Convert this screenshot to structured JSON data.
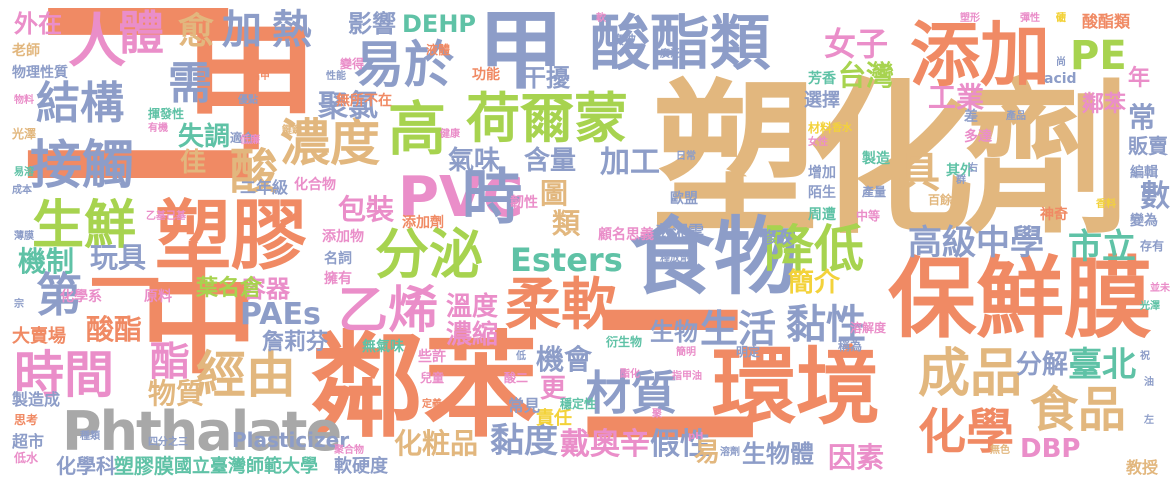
{
  "palette": {
    "tan": "#E2B77E",
    "coral": "#F08A64",
    "blue": "#8D9DC8",
    "pink": "#EA8EC9",
    "green": "#A7D34F",
    "teal": "#5FC2A6",
    "yellow": "#F3D23A",
    "gray": "#A8A8A8"
  },
  "words": [
    {
      "id": "suhuaji",
      "text": "塑化劑",
      "color": "tan"
    },
    {
      "id": "linben",
      "text": "鄰苯",
      "color": "coral"
    },
    {
      "id": "huanjing",
      "text": "環境",
      "color": "coral"
    },
    {
      "id": "baoxianmo",
      "text": "保鮮膜",
      "color": "coral"
    },
    {
      "id": "shiwu",
      "text": "食物",
      "color": "blue"
    },
    {
      "id": "sujiao",
      "text": "塑膠",
      "color": "coral"
    },
    {
      "id": "jia-big",
      "text": "甲",
      "color": "coral"
    },
    {
      "id": "zhong-big",
      "text": "中",
      "color": "coral"
    },
    {
      "id": "er-big",
      "text": "二",
      "color": "coral"
    },
    {
      "id": "er-bottom",
      "text": "二",
      "color": "coral"
    },
    {
      "id": "suanzhilei",
      "text": "酸酯類",
      "color": "blue"
    },
    {
      "id": "tianjia",
      "text": "添加",
      "color": "coral"
    },
    {
      "id": "jia-2",
      "text": "甲",
      "color": "blue"
    },
    {
      "id": "pvc",
      "text": "PVC",
      "color": "pink"
    },
    {
      "id": "phthalate",
      "text": "Phthalate",
      "color": "gray"
    },
    {
      "id": "hongermeng",
      "text": "荷爾蒙",
      "color": "green"
    },
    {
      "id": "fenmi",
      "text": "分泌",
      "color": "green"
    },
    {
      "id": "rouruan",
      "text": "柔軟",
      "color": "coral"
    },
    {
      "id": "caizhi",
      "text": "材質",
      "color": "blue"
    },
    {
      "id": "chengpin",
      "text": "成品",
      "color": "tan"
    },
    {
      "id": "shipin",
      "text": "食品",
      "color": "tan"
    },
    {
      "id": "huaxue",
      "text": "化學",
      "color": "coral"
    },
    {
      "id": "shengxian",
      "text": "生鮮",
      "color": "green"
    },
    {
      "id": "jiechu",
      "text": "接觸",
      "color": "blue"
    },
    {
      "id": "jiegou",
      "text": "結構",
      "color": "blue"
    },
    {
      "id": "ren",
      "text": "人",
      "color": "pink"
    },
    {
      "id": "ti",
      "text": "體",
      "color": "pink"
    },
    {
      "id": "xu",
      "text": "需",
      "color": "blue"
    },
    {
      "id": "yiyu",
      "text": "易於",
      "color": "blue"
    },
    {
      "id": "nongdu",
      "text": "濃度",
      "color": "tan"
    },
    {
      "id": "gao",
      "text": "高",
      "color": "green"
    },
    {
      "id": "shi",
      "text": "時",
      "color": "blue"
    },
    {
      "id": "yixi",
      "text": "乙烯",
      "color": "pink"
    },
    {
      "id": "jiangdi",
      "text": "降低",
      "color": "green"
    },
    {
      "id": "gaojizhongxue",
      "text": "高級中學",
      "color": "blue"
    },
    {
      "id": "shili",
      "text": "市立",
      "color": "teal"
    },
    {
      "id": "shijian",
      "text": "時間",
      "color": "pink"
    },
    {
      "id": "di",
      "text": "第",
      "color": "blue"
    },
    {
      "id": "yi",
      "text": "一",
      "color": "coral"
    },
    {
      "id": "jingyou",
      "text": "經由",
      "color": "tan"
    },
    {
      "id": "suan",
      "text": "酸",
      "color": "tan"
    },
    {
      "id": "jia-heat",
      "text": "加",
      "color": "blue"
    },
    {
      "id": "re",
      "text": "熱",
      "color": "blue"
    },
    {
      "id": "yu",
      "text": "愈",
      "color": "tan"
    },
    {
      "id": "pe",
      "text": "PE",
      "color": "green"
    },
    {
      "id": "nvzi",
      "text": "女子",
      "color": "pink"
    },
    {
      "id": "taiwan",
      "text": "台灣",
      "color": "green"
    },
    {
      "id": "gongye",
      "text": "工業",
      "color": "pink"
    },
    {
      "id": "esters",
      "text": "Esters",
      "color": "teal"
    },
    {
      "id": "paes",
      "text": "PAEs",
      "color": "blue"
    },
    {
      "id": "baozhuang",
      "text": "包裝",
      "color": "pink"
    },
    {
      "id": "qiwei",
      "text": "氣味",
      "color": "blue"
    },
    {
      "id": "hanliang",
      "text": "含量",
      "color": "blue"
    },
    {
      "id": "jiagong",
      "text": "加工",
      "color": "blue"
    },
    {
      "id": "julvyi",
      "text": "聚氯",
      "color": "blue"
    },
    {
      "id": "shitiao",
      "text": "失調",
      "color": "teal"
    },
    {
      "id": "jia-fine",
      "text": "佳",
      "color": "tan"
    },
    {
      "id": "jiuban",
      "text": "具",
      "color": "tan"
    },
    {
      "id": "nianxing",
      "text": "黏性",
      "color": "blue"
    },
    {
      "id": "shenghuo",
      "text": "生活",
      "color": "blue"
    },
    {
      "id": "shengwu",
      "text": "生物",
      "color": "blue"
    },
    {
      "id": "fenjie",
      "text": "分解",
      "color": "blue"
    },
    {
      "id": "taibei",
      "text": "臺北",
      "color": "teal"
    },
    {
      "id": "jianjie",
      "text": "簡介",
      "color": "yellow"
    },
    {
      "id": "wendu",
      "text": "溫度",
      "color": "pink"
    },
    {
      "id": "nongsuo",
      "text": "濃縮",
      "color": "pink"
    },
    {
      "id": "suanzhi",
      "text": "酸酯",
      "color": "coral"
    },
    {
      "id": "zhi",
      "text": "酯",
      "color": "pink"
    },
    {
      "id": "wanju",
      "text": "玩具",
      "color": "blue"
    },
    {
      "id": "jizhi",
      "text": "機制",
      "color": "teal"
    },
    {
      "id": "nianduo",
      "text": "黏度",
      "color": "blue"
    },
    {
      "id": "daiaoxin",
      "text": "戴奧辛",
      "color": "pink"
    },
    {
      "id": "jiaxing",
      "text": "假性",
      "color": "blue"
    },
    {
      "id": "shengwuti",
      "text": "生物體",
      "color": "blue"
    },
    {
      "id": "yinsu",
      "text": "因素",
      "color": "pink"
    },
    {
      "id": "dbp",
      "text": "DBP",
      "color": "pink"
    },
    {
      "id": "huazhuangpin",
      "text": "化粧品",
      "color": "tan"
    },
    {
      "id": "guoli",
      "text": "國立臺灣師範大學",
      "color": "teal"
    },
    {
      "id": "suxiaomo",
      "text": "塑膠膜",
      "color": "teal"
    },
    {
      "id": "huaxueke",
      "text": "化學科",
      "color": "blue"
    },
    {
      "id": "ruanyingdu",
      "text": "軟硬度",
      "color": "blue"
    },
    {
      "id": "plasticizer",
      "text": "Plasticizer",
      "color": "blue"
    },
    {
      "id": "wuzhi",
      "text": "物質",
      "color": "tan"
    },
    {
      "id": "rongqi",
      "text": "容器",
      "color": "pink"
    },
    {
      "id": "yemingcang",
      "text": "葉名倉",
      "color": "green"
    },
    {
      "id": "zhanlifen",
      "text": "詹莉芬",
      "color": "blue"
    },
    {
      "id": "dehp",
      "text": "DEHP",
      "color": "teal"
    },
    {
      "id": "yingxiang",
      "text": "影響",
      "color": "blue"
    },
    {
      "id": "gangrao",
      "text": "干擾",
      "color": "blue"
    },
    {
      "id": "jihui",
      "text": "機會",
      "color": "blue"
    },
    {
      "id": "tu",
      "text": "圖",
      "color": "tan"
    },
    {
      "id": "lei",
      "text": "類",
      "color": "tan"
    },
    {
      "id": "geng",
      "text": "更",
      "color": "pink"
    },
    {
      "id": "yi-easy",
      "text": "易",
      "color": "tan"
    },
    {
      "id": "zerenl",
      "text": "責任",
      "color": "yellow"
    },
    {
      "id": "waizai",
      "text": "外在",
      "color": "pink"
    },
    {
      "id": "shu",
      "text": "數",
      "color": "blue"
    },
    {
      "id": "chang",
      "text": "常",
      "color": "blue"
    },
    {
      "id": "nian",
      "text": "年",
      "color": "pink"
    },
    {
      "id": "linben-2",
      "text": "鄰苯",
      "color": "pink"
    },
    {
      "id": "suanzhilei-2",
      "text": "酸酯類",
      "color": "coral"
    },
    {
      "id": "dameichang",
      "text": "大賣場",
      "color": "coral"
    },
    {
      "id": "zhizaocheng",
      "text": "製造成",
      "color": "blue"
    },
    {
      "id": "chaoshi",
      "text": "超市",
      "color": "blue"
    },
    {
      "id": "wulixingzhi",
      "text": "物理性質",
      "color": "blue"
    },
    {
      "id": "laoshi",
      "text": "老師",
      "color": "tan"
    },
    {
      "id": "fanmai",
      "text": "販賣",
      "color": "blue"
    },
    {
      "id": "shenqi",
      "text": "神奇",
      "color": "coral"
    },
    {
      "id": "bianwei",
      "text": "變為",
      "color": "blue"
    },
    {
      "id": "bianji",
      "text": "編輯",
      "color": "blue"
    },
    {
      "id": "xianxiang",
      "text": "香料",
      "color": "pink"
    },
    {
      "id": "cunyou",
      "text": "存有",
      "color": "blue"
    },
    {
      "id": "jiaoshou",
      "text": "教授",
      "color": "tan"
    },
    {
      "id": "pengxiangyun",
      "text": "彭湘雲",
      "color": "blue"
    },
    {
      "id": "xiugai",
      "text": "修改",
      "color": "blue"
    },
    {
      "id": "guming",
      "text": "顧名思義",
      "color": "pink"
    },
    {
      "id": "tianjiaji",
      "text": "添加劑",
      "color": "coral"
    },
    {
      "id": "tianjiawu",
      "text": "添加物",
      "color": "pink"
    },
    {
      "id": "mingci",
      "text": "名詞",
      "color": "blue"
    },
    {
      "id": "yongyou",
      "text": "擁有",
      "color": "pink"
    },
    {
      "id": "wuqiwei",
      "text": "無氣味",
      "color": "teal"
    },
    {
      "id": "huahewu",
      "text": "化合物",
      "color": "pink"
    },
    {
      "id": "ernianji",
      "text": "二年級",
      "color": "blue"
    },
    {
      "id": "renxing",
      "text": "韌性",
      "color": "pink"
    },
    {
      "id": "gongneng",
      "text": "功能",
      "color": "coral"
    },
    {
      "id": "xuanze",
      "text": "選擇",
      "color": "blue"
    },
    {
      "id": "fangxiang",
      "text": "芳香",
      "color": "teal"
    },
    {
      "id": "acid",
      "text": "acid",
      "color": "blue"
    },
    {
      "id": "qita",
      "text": "其外",
      "color": "teal"
    },
    {
      "id": "zhouzao",
      "text": "周遭",
      "color": "teal"
    },
    {
      "id": "mosheng",
      "text": "陌生",
      "color": "blue"
    },
    {
      "id": "ouzheng",
      "text": "歐盟",
      "color": "blue"
    },
    {
      "id": "zengjia",
      "text": "增加",
      "color": "blue"
    },
    {
      "id": "zhizao",
      "text": "製造",
      "color": "teal"
    },
    {
      "id": "zhongdeng",
      "text": "中等",
      "color": "pink"
    },
    {
      "id": "chanliang",
      "text": "產量",
      "color": "blue"
    },
    {
      "id": "baiyu",
      "text": "百餘",
      "color": "tan"
    },
    {
      "id": "duoda",
      "text": "多達",
      "color": "pink"
    },
    {
      "id": "cha",
      "text": "差",
      "color": "blue"
    },
    {
      "id": "shiyong",
      "text": "適合",
      "color": "blue"
    },
    {
      "id": "yanse",
      "text": "無色",
      "color": "tan"
    },
    {
      "id": "sikefen",
      "text": "四分之三",
      "color": "blue"
    },
    {
      "id": "zhonglei",
      "text": "種類",
      "color": "blue"
    },
    {
      "id": "sikao",
      "text": "思考",
      "color": "coral"
    },
    {
      "id": "dishui",
      "text": "低水",
      "color": "pink"
    },
    {
      "id": "ertong",
      "text": "兒童",
      "color": "pink"
    },
    {
      "id": "wuchu",
      "text": "無所不在",
      "color": "coral"
    },
    {
      "id": "huaxuexi",
      "text": "化學系",
      "color": "pink"
    },
    {
      "id": "yuanliao",
      "text": "原料",
      "color": "pink"
    },
    {
      "id": "yansheng",
      "text": "衍生物",
      "color": "teal"
    },
    {
      "id": "wending",
      "text": "穩定性",
      "color": "teal"
    },
    {
      "id": "mingque",
      "text": "明定",
      "color": "blue"
    },
    {
      "id": "chengwei",
      "text": "稱為",
      "color": "blue"
    },
    {
      "id": "rongjiedu",
      "text": "溶解度",
      "color": "pink"
    },
    {
      "id": "guangze",
      "text": "光澤",
      "color": "tan"
    },
    {
      "id": "chengben",
      "text": "成本",
      "color": "blue"
    },
    {
      "id": "changjian",
      "text": "常見",
      "color": "blue"
    },
    {
      "id": "xiexu",
      "text": "些許",
      "color": "pink"
    },
    {
      "id": "suanmolar",
      "text": "酸二",
      "color": "pink"
    },
    {
      "id": "shifang",
      "text": "釋放劑",
      "color": "blue"
    },
    {
      "id": "gongxiang",
      "text": "廣被",
      "color": "blue"
    },
    {
      "id": "bianhe",
      "text": "變得",
      "color": "pink"
    },
    {
      "id": "yeti",
      "text": "液體",
      "color": "coral"
    },
    {
      "id": "guangfan",
      "text": "廣泛",
      "color": "blue"
    },
    {
      "id": "cailiao",
      "text": "材料",
      "color": "yellow"
    },
    {
      "id": "chanpin",
      "text": "產品",
      "color": "blue"
    },
    {
      "id": "jianming",
      "text": "簡明",
      "color": "pink"
    },
    {
      "id": "rongji",
      "text": "溶劑",
      "color": "blue"
    },
    {
      "id": "huahuxing",
      "text": "揮發性",
      "color": "teal"
    },
    {
      "id": "youxiao",
      "text": "有機",
      "color": "pink"
    },
    {
      "id": "zhu",
      "text": "宗",
      "color": "blue"
    },
    {
      "id": "richang",
      "text": "日常",
      "color": "blue"
    },
    {
      "id": "jiankang",
      "text": "健康",
      "color": "pink"
    },
    {
      "id": "ruan",
      "text": "軟",
      "color": "pink"
    },
    {
      "id": "tanxing",
      "text": "彈性",
      "color": "pink"
    },
    {
      "id": "yingjie",
      "text": "硬",
      "color": "yellow"
    },
    {
      "id": "yiqi",
      "text": "乙基己基",
      "color": "pink"
    },
    {
      "id": "xiangshui",
      "text": "香水",
      "color": "yellow"
    },
    {
      "id": "nvxing",
      "text": "女性",
      "color": "pink"
    },
    {
      "id": "suxing",
      "text": "塑形",
      "color": "pink"
    },
    {
      "id": "xiangli",
      "text": "香料",
      "color": "yellow"
    },
    {
      "id": "bingli",
      "text": "並未",
      "color": "pink"
    },
    {
      "id": "guangze2",
      "text": "光澤",
      "color": "teal"
    },
    {
      "id": "you",
      "text": "油",
      "color": "blue"
    },
    {
      "id": "zuo",
      "text": "左",
      "color": "blue"
    },
    {
      "id": "di2",
      "text": "低",
      "color": "blue"
    },
    {
      "id": "ph",
      "text": "pH",
      "color": "pink"
    },
    {
      "id": "dingyi",
      "text": "定義",
      "color": "coral"
    },
    {
      "id": "ju",
      "text": "聚",
      "color": "pink"
    },
    {
      "id": "zhijia",
      "text": "指甲油",
      "color": "pink"
    },
    {
      "id": "zhi2",
      "text": "指甲",
      "color": "coral"
    },
    {
      "id": "xingneng",
      "text": "性能",
      "color": "blue"
    },
    {
      "id": "youliang",
      "text": "優點",
      "color": "blue"
    },
    {
      "id": "wenduan",
      "text": "薄膜",
      "color": "blue"
    },
    {
      "id": "wuliao",
      "text": "物料",
      "color": "pink"
    },
    {
      "id": "yiguo",
      "text": "易溶",
      "color": "teal"
    },
    {
      "id": "qun",
      "text": "群",
      "color": "blue"
    },
    {
      "id": "zhu2",
      "text": "祝",
      "color": "blue"
    },
    {
      "id": "tiaojian",
      "text": "條件",
      "color": "blue"
    },
    {
      "id": "fuhe",
      "text": "鍵鍵",
      "color": "tan"
    },
    {
      "id": "didu",
      "text": "低廉",
      "color": "pink"
    },
    {
      "id": "shang",
      "text": "尚",
      "color": "blue"
    },
    {
      "id": "gu",
      "text": "估",
      "color": "yellow"
    },
    {
      "id": "zhi3",
      "text": "至",
      "color": "pink"
    },
    {
      "id": "you2",
      "text": "右",
      "color": "blue"
    },
    {
      "id": "zhiyou",
      "text": "聚合物",
      "color": "pink"
    },
    {
      "id": "ruanhua",
      "text": "軟化",
      "color": "pink"
    },
    {
      "id": "suanhua",
      "text": "酯化",
      "color": "pink"
    },
    {
      "id": "zhouzi",
      "text": "軟化",
      "color": "pink"
    },
    {
      "id": "xiangxi",
      "text": "相較",
      "color": "yellow"
    },
    {
      "id": "hejia",
      "text": "鹽",
      "color": "tan"
    },
    {
      "id": "jiaoyu",
      "text": "教育",
      "color": "blue"
    },
    {
      "id": "xian",
      "text": "顯",
      "color": "pink"
    },
    {
      "id": "bianlei",
      "text": "結",
      "color": "pink"
    },
    {
      "id": "xing",
      "text": "性質",
      "color": "blue"
    },
    {
      "id": "liang",
      "text": "兩",
      "color": "tan"
    }
  ]
}
